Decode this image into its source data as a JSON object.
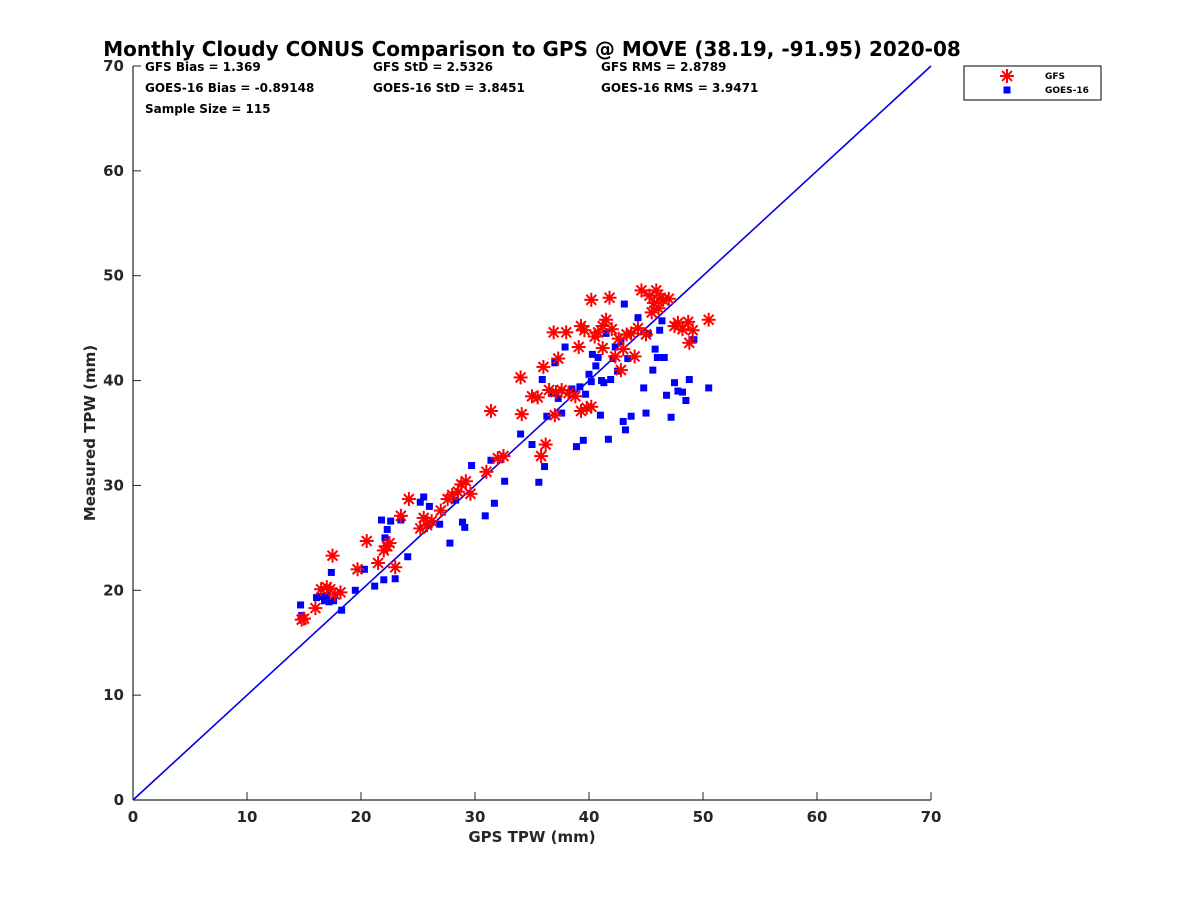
{
  "chart_data": {
    "type": "scatter",
    "title": "Monthly Cloudy CONUS Comparison to GPS @ MOVE (38.19, -91.95) 2020-08",
    "xlabel": "GPS TPW (mm)",
    "ylabel": "Measured TPW (mm)",
    "xlim": [
      0,
      70
    ],
    "ylim": [
      0,
      70
    ],
    "xticks": [
      0,
      10,
      20,
      30,
      40,
      50,
      60,
      70
    ],
    "yticks": [
      0,
      10,
      20,
      30,
      40,
      50,
      60,
      70
    ],
    "grid": false,
    "legend_position": "top-right outside",
    "reference_line": {
      "x": [
        0,
        70
      ],
      "y": [
        0,
        70
      ],
      "color": "#0000e6"
    },
    "stats": [
      "GFS Bias = 1.369",
      "GFS StD = 2.5326",
      "GFS RMS = 2.8789",
      "GOES-16 Bias = -0.89148",
      "GOES-16 StD = 3.8451",
      "GOES-16 RMS = 3.9471",
      "Sample Size = 115"
    ],
    "series": [
      {
        "name": "GFS",
        "marker": "asterisk",
        "color": "#ff0000",
        "points": [
          [
            14.8,
            17.2
          ],
          [
            15.0,
            17.3
          ],
          [
            16.0,
            18.3
          ],
          [
            16.5,
            20.1
          ],
          [
            17.0,
            20.3
          ],
          [
            17.3,
            20.1
          ],
          [
            17.5,
            23.3
          ],
          [
            17.7,
            19.6
          ],
          [
            18.2,
            19.8
          ],
          [
            19.7,
            22.0
          ],
          [
            20.5,
            24.7
          ],
          [
            21.5,
            22.6
          ],
          [
            22.0,
            23.8
          ],
          [
            22.3,
            24.2
          ],
          [
            22.5,
            24.5
          ],
          [
            23.0,
            22.2
          ],
          [
            23.5,
            27.1
          ],
          [
            24.2,
            28.7
          ],
          [
            25.2,
            25.9
          ],
          [
            25.5,
            26.9
          ],
          [
            25.8,
            26.2
          ],
          [
            26.2,
            26.6
          ],
          [
            27.0,
            27.6
          ],
          [
            27.6,
            28.7
          ],
          [
            28.0,
            29.1
          ],
          [
            28.5,
            29.4
          ],
          [
            28.8,
            30.1
          ],
          [
            29.2,
            30.4
          ],
          [
            29.6,
            29.2
          ],
          [
            31.0,
            31.3
          ],
          [
            31.4,
            37.1
          ],
          [
            32.0,
            32.6
          ],
          [
            32.5,
            32.8
          ],
          [
            34.0,
            40.3
          ],
          [
            34.1,
            36.8
          ],
          [
            35.0,
            38.5
          ],
          [
            35.5,
            38.4
          ],
          [
            35.8,
            32.8
          ],
          [
            36.0,
            41.3
          ],
          [
            36.2,
            33.9
          ],
          [
            36.5,
            39.1
          ],
          [
            36.9,
            44.6
          ],
          [
            37.0,
            36.7
          ],
          [
            37.1,
            38.9
          ],
          [
            37.3,
            42.1
          ],
          [
            37.6,
            39.1
          ],
          [
            38.0,
            44.6
          ],
          [
            38.2,
            38.8
          ],
          [
            38.8,
            38.5
          ],
          [
            39.1,
            43.2
          ],
          [
            39.3,
            45.2
          ],
          [
            39.3,
            37.1
          ],
          [
            39.6,
            44.8
          ],
          [
            39.8,
            37.4
          ],
          [
            40.2,
            37.5
          ],
          [
            40.2,
            47.7
          ],
          [
            40.5,
            44.2
          ],
          [
            40.8,
            44.6
          ],
          [
            41.2,
            45.2
          ],
          [
            41.2,
            43.1
          ],
          [
            41.5,
            45.8
          ],
          [
            41.8,
            47.9
          ],
          [
            42.0,
            44.9
          ],
          [
            42.3,
            42.3
          ],
          [
            42.6,
            44.0
          ],
          [
            42.8,
            41.0
          ],
          [
            43.0,
            43.0
          ],
          [
            43.3,
            44.4
          ],
          [
            43.7,
            44.5
          ],
          [
            44.0,
            42.3
          ],
          [
            44.3,
            45.0
          ],
          [
            44.6,
            48.6
          ],
          [
            45.0,
            44.4
          ],
          [
            45.3,
            48.1
          ],
          [
            45.5,
            46.5
          ],
          [
            45.7,
            47.4
          ],
          [
            45.9,
            48.6
          ],
          [
            46.1,
            46.9
          ],
          [
            46.3,
            47.9
          ],
          [
            46.5,
            47.7
          ],
          [
            47.0,
            47.8
          ],
          [
            47.5,
            45.2
          ],
          [
            47.8,
            45.5
          ],
          [
            48.2,
            44.9
          ],
          [
            48.7,
            45.6
          ],
          [
            48.8,
            43.6
          ],
          [
            49.1,
            44.8
          ],
          [
            50.5,
            45.8
          ]
        ]
      },
      {
        "name": "GOES-16",
        "marker": "square",
        "color": "#0000ff",
        "points": [
          [
            14.7,
            18.6
          ],
          [
            14.8,
            17.6
          ],
          [
            16.1,
            19.3
          ],
          [
            16.5,
            19.4
          ],
          [
            16.8,
            19.0
          ],
          [
            17.0,
            19.5
          ],
          [
            17.2,
            18.9
          ],
          [
            17.4,
            21.7
          ],
          [
            17.6,
            19.0
          ],
          [
            18.3,
            18.1
          ],
          [
            19.5,
            20.0
          ],
          [
            20.3,
            22.0
          ],
          [
            21.2,
            20.4
          ],
          [
            21.8,
            26.7
          ],
          [
            22.0,
            21.0
          ],
          [
            22.1,
            25.0
          ],
          [
            22.3,
            25.8
          ],
          [
            22.6,
            26.6
          ],
          [
            23.0,
            21.1
          ],
          [
            23.5,
            26.7
          ],
          [
            24.1,
            23.2
          ],
          [
            25.2,
            28.4
          ],
          [
            25.5,
            28.9
          ],
          [
            26.0,
            28.0
          ],
          [
            26.9,
            26.3
          ],
          [
            27.8,
            24.5
          ],
          [
            28.3,
            28.6
          ],
          [
            28.9,
            26.5
          ],
          [
            29.1,
            26.0
          ],
          [
            29.7,
            31.9
          ],
          [
            30.9,
            27.1
          ],
          [
            31.4,
            32.4
          ],
          [
            31.7,
            28.3
          ],
          [
            32.6,
            30.4
          ],
          [
            34.0,
            34.9
          ],
          [
            35.0,
            33.9
          ],
          [
            35.6,
            30.3
          ],
          [
            35.9,
            40.1
          ],
          [
            36.1,
            31.8
          ],
          [
            36.3,
            36.6
          ],
          [
            36.7,
            38.8
          ],
          [
            37.0,
            41.7
          ],
          [
            37.3,
            38.3
          ],
          [
            37.6,
            36.9
          ],
          [
            37.9,
            43.2
          ],
          [
            38.5,
            39.2
          ],
          [
            38.9,
            33.7
          ],
          [
            39.2,
            39.4
          ],
          [
            39.5,
            34.3
          ],
          [
            39.7,
            38.7
          ],
          [
            40.0,
            40.6
          ],
          [
            40.2,
            39.9
          ],
          [
            40.3,
            42.5
          ],
          [
            40.6,
            41.4
          ],
          [
            40.8,
            42.2
          ],
          [
            41.0,
            36.7
          ],
          [
            41.1,
            40.0
          ],
          [
            41.3,
            39.8
          ],
          [
            41.5,
            44.5
          ],
          [
            41.7,
            34.4
          ],
          [
            41.9,
            40.1
          ],
          [
            42.1,
            42.1
          ],
          [
            42.3,
            43.2
          ],
          [
            42.5,
            40.9
          ],
          [
            42.8,
            43.7
          ],
          [
            43.0,
            36.1
          ],
          [
            43.1,
            47.3
          ],
          [
            43.2,
            35.3
          ],
          [
            43.4,
            42.1
          ],
          [
            43.7,
            36.6
          ],
          [
            44.3,
            46.0
          ],
          [
            44.8,
            39.3
          ],
          [
            45.0,
            36.9
          ],
          [
            45.2,
            44.5
          ],
          [
            45.6,
            41.0
          ],
          [
            45.8,
            43.0
          ],
          [
            46.0,
            42.2
          ],
          [
            46.2,
            44.8
          ],
          [
            46.4,
            45.7
          ],
          [
            46.6,
            42.2
          ],
          [
            46.8,
            38.6
          ],
          [
            47.2,
            36.5
          ],
          [
            47.5,
            39.8
          ],
          [
            47.8,
            39.0
          ],
          [
            48.2,
            38.9
          ],
          [
            48.5,
            38.1
          ],
          [
            48.8,
            40.1
          ],
          [
            49.2,
            43.9
          ],
          [
            50.5,
            39.3
          ]
        ]
      }
    ]
  }
}
